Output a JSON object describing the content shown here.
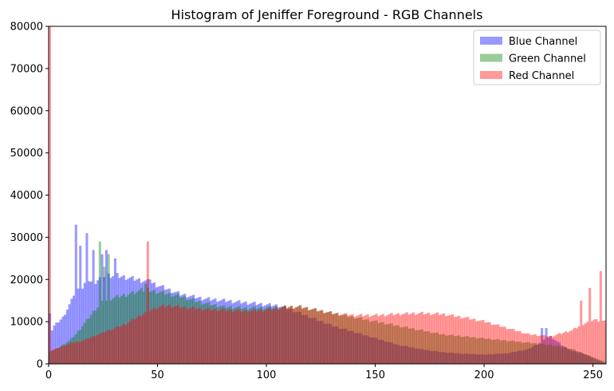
{
  "chart_data": {
    "type": "histogram",
    "title": "Histogram of Jeniffer Foreground - RGB Channels",
    "xlabel": "",
    "ylabel": "",
    "xlim": [
      0,
      256
    ],
    "ylim": [
      0,
      80000
    ],
    "x_ticks": [
      0,
      50,
      100,
      150,
      200,
      250
    ],
    "y_ticks": [
      0,
      10000,
      20000,
      30000,
      40000,
      50000,
      60000,
      70000,
      80000
    ],
    "grid": false,
    "legend_position": "top-right",
    "bins": 256,
    "series": [
      {
        "name": "Blue Channel",
        "color": "#0000ff",
        "opacity": 0.4,
        "spikes": [
          [
            0,
            12000
          ],
          [
            12,
            33000
          ],
          [
            14,
            28000
          ],
          [
            17,
            31000
          ],
          [
            20,
            27000
          ],
          [
            24,
            26000
          ],
          [
            26,
            27000
          ],
          [
            30,
            25000
          ],
          [
            46,
            20000
          ],
          [
            226,
            8500
          ],
          [
            228,
            8500
          ]
        ],
        "points": [
          [
            0,
            7000
          ],
          [
            2,
            9000
          ],
          [
            4,
            10000
          ],
          [
            6,
            11000
          ],
          [
            8,
            13000
          ],
          [
            10,
            15000
          ],
          [
            12,
            18000
          ],
          [
            14,
            17000
          ],
          [
            16,
            19000
          ],
          [
            18,
            20000
          ],
          [
            20,
            19000
          ],
          [
            22,
            20000
          ],
          [
            25,
            21000
          ],
          [
            30,
            21000
          ],
          [
            35,
            20500
          ],
          [
            40,
            20000
          ],
          [
            45,
            19500
          ],
          [
            50,
            18500
          ],
          [
            55,
            17500
          ],
          [
            60,
            16500
          ],
          [
            70,
            15500
          ],
          [
            80,
            15000
          ],
          [
            90,
            14500
          ],
          [
            100,
            14000
          ],
          [
            105,
            13800
          ],
          [
            110,
            13000
          ],
          [
            115,
            12000
          ],
          [
            120,
            11000
          ],
          [
            125,
            10000
          ],
          [
            130,
            9000
          ],
          [
            140,
            7500
          ],
          [
            150,
            6000
          ],
          [
            160,
            4500
          ],
          [
            170,
            3500
          ],
          [
            180,
            2800
          ],
          [
            190,
            2400
          ],
          [
            200,
            2200
          ],
          [
            210,
            2500
          ],
          [
            220,
            3500
          ],
          [
            225,
            5000
          ],
          [
            230,
            6500
          ],
          [
            235,
            4500
          ],
          [
            240,
            3000
          ],
          [
            245,
            2500
          ],
          [
            250,
            1200
          ],
          [
            255,
            200
          ]
        ]
      },
      {
        "name": "Green Channel",
        "color": "#008000",
        "opacity": 0.4,
        "spikes": [
          [
            23,
            29000
          ],
          [
            25,
            23000
          ],
          [
            27,
            26000
          ],
          [
            42,
            18000
          ],
          [
            44,
            19000
          ]
        ],
        "points": [
          [
            0,
            3000
          ],
          [
            3,
            3500
          ],
          [
            6,
            4500
          ],
          [
            9,
            5500
          ],
          [
            12,
            7000
          ],
          [
            15,
            9000
          ],
          [
            18,
            11000
          ],
          [
            21,
            13000
          ],
          [
            24,
            14500
          ],
          [
            28,
            15500
          ],
          [
            32,
            16000
          ],
          [
            36,
            16500
          ],
          [
            40,
            17000
          ],
          [
            45,
            17500
          ],
          [
            50,
            17000
          ],
          [
            55,
            16500
          ],
          [
            60,
            16000
          ],
          [
            70,
            14500
          ],
          [
            80,
            13500
          ],
          [
            90,
            13200
          ],
          [
            100,
            13300
          ],
          [
            110,
            13500
          ],
          [
            115,
            13500
          ],
          [
            120,
            13000
          ],
          [
            130,
            12000
          ],
          [
            140,
            11000
          ],
          [
            150,
            10000
          ],
          [
            160,
            9000
          ],
          [
            170,
            8000
          ],
          [
            180,
            7000
          ],
          [
            190,
            6500
          ],
          [
            200,
            6000
          ],
          [
            210,
            5500
          ],
          [
            220,
            5000
          ],
          [
            230,
            4500
          ],
          [
            240,
            3500
          ],
          [
            250,
            1500
          ],
          [
            255,
            500
          ]
        ]
      },
      {
        "name": "Red Channel",
        "color": "#ff0000",
        "opacity": 0.4,
        "spikes": [
          [
            0,
            80000
          ],
          [
            45,
            29000
          ],
          [
            244,
            15000
          ],
          [
            248,
            18000
          ],
          [
            253,
            22000
          ]
        ],
        "points": [
          [
            0,
            3000
          ],
          [
            5,
            4000
          ],
          [
            10,
            5000
          ],
          [
            15,
            5500
          ],
          [
            20,
            6500
          ],
          [
            25,
            7500
          ],
          [
            30,
            8500
          ],
          [
            35,
            9500
          ],
          [
            40,
            11000
          ],
          [
            45,
            12500
          ],
          [
            50,
            13500
          ],
          [
            55,
            13800
          ],
          [
            60,
            13500
          ],
          [
            70,
            13000
          ],
          [
            80,
            12800
          ],
          [
            90,
            12500
          ],
          [
            100,
            12800
          ],
          [
            105,
            13200
          ],
          [
            110,
            13500
          ],
          [
            115,
            13500
          ],
          [
            120,
            13000
          ],
          [
            125,
            12500
          ],
          [
            130,
            12000
          ],
          [
            140,
            11500
          ],
          [
            150,
            11500
          ],
          [
            160,
            11800
          ],
          [
            170,
            12000
          ],
          [
            180,
            11800
          ],
          [
            190,
            11000
          ],
          [
            200,
            10000
          ],
          [
            210,
            8500
          ],
          [
            220,
            7000
          ],
          [
            230,
            6500
          ],
          [
            240,
            8000
          ],
          [
            245,
            9500
          ],
          [
            250,
            10500
          ],
          [
            255,
            10000
          ]
        ]
      }
    ]
  }
}
